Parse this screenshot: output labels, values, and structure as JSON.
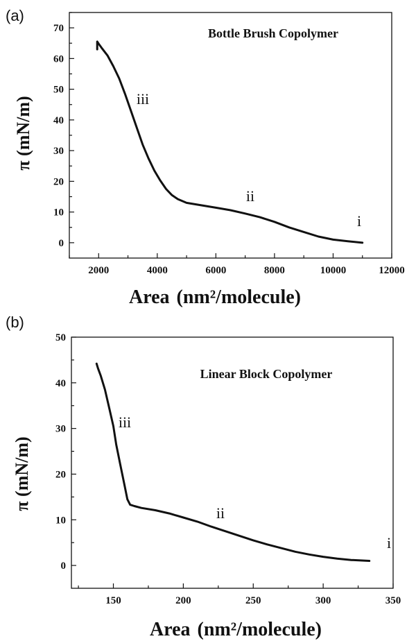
{
  "chart_data": [
    {
      "type": "line",
      "panel_label": "(a)",
      "title": "Bottle Brush Copolymer",
      "xlabel": "Area",
      "xlabel_units": "(nm²/molecule)",
      "ylabel": "π (mN/m)",
      "xlim": [
        1000,
        12000
      ],
      "ylim": [
        -5,
        75
      ],
      "xticks": [
        "2000",
        "4000",
        "6000",
        "8000",
        "10000",
        "12000"
      ],
      "yticks": [
        "0",
        "10",
        "20",
        "30",
        "40",
        "50",
        "60",
        "70"
      ],
      "series": [
        {
          "x": [
            11000,
            10500,
            10000,
            9500,
            9000,
            8500,
            8000,
            7500,
            7000,
            6500,
            6000,
            5500,
            5000,
            4700,
            4500,
            4300,
            4100,
            3900,
            3700,
            3500,
            3300,
            3100,
            2900,
            2700,
            2500,
            2300,
            2100,
            2000,
            1950,
            1950
          ],
          "y": [
            0,
            0.5,
            1,
            2,
            3.5,
            5,
            6.8,
            8.3,
            9.5,
            10.6,
            11.4,
            12.2,
            13,
            14.2,
            15.5,
            17.5,
            20.3,
            23.5,
            27.5,
            32,
            37.5,
            43,
            48.5,
            53.5,
            57.5,
            61,
            63.5,
            64.8,
            65.5,
            63
          ]
        }
      ],
      "annotations": [
        "i",
        "ii",
        "iii"
      ]
    },
    {
      "type": "line",
      "panel_label": "(b)",
      "title": "Linear Block Copolymer",
      "xlabel": "Area",
      "xlabel_units": "(nm²/molecule)",
      "ylabel": "π (mN/m)",
      "xlim": [
        120,
        350
      ],
      "ylim": [
        -5,
        50
      ],
      "xticks": [
        "150",
        "200",
        "250",
        "300",
        "350"
      ],
      "yticks": [
        "0",
        "10",
        "20",
        "30",
        "40",
        "50"
      ],
      "series": [
        {
          "x": [
            333,
            320,
            310,
            300,
            290,
            280,
            270,
            260,
            250,
            240,
            230,
            220,
            210,
            200,
            190,
            180,
            170,
            165,
            162,
            160,
            158,
            155,
            152,
            150,
            147,
            144,
            141,
            139,
            138
          ],
          "y": [
            1,
            1.2,
            1.5,
            1.9,
            2.4,
            3,
            3.8,
            4.6,
            5.5,
            6.5,
            7.5,
            8.5,
            9.6,
            10.5,
            11.4,
            12.1,
            12.6,
            13,
            13.3,
            14.5,
            17.5,
            22,
            26.5,
            30.5,
            34.5,
            38.5,
            41.5,
            43.2,
            44.2
          ]
        }
      ],
      "annotations": [
        "i",
        "ii",
        "iii"
      ]
    }
  ]
}
